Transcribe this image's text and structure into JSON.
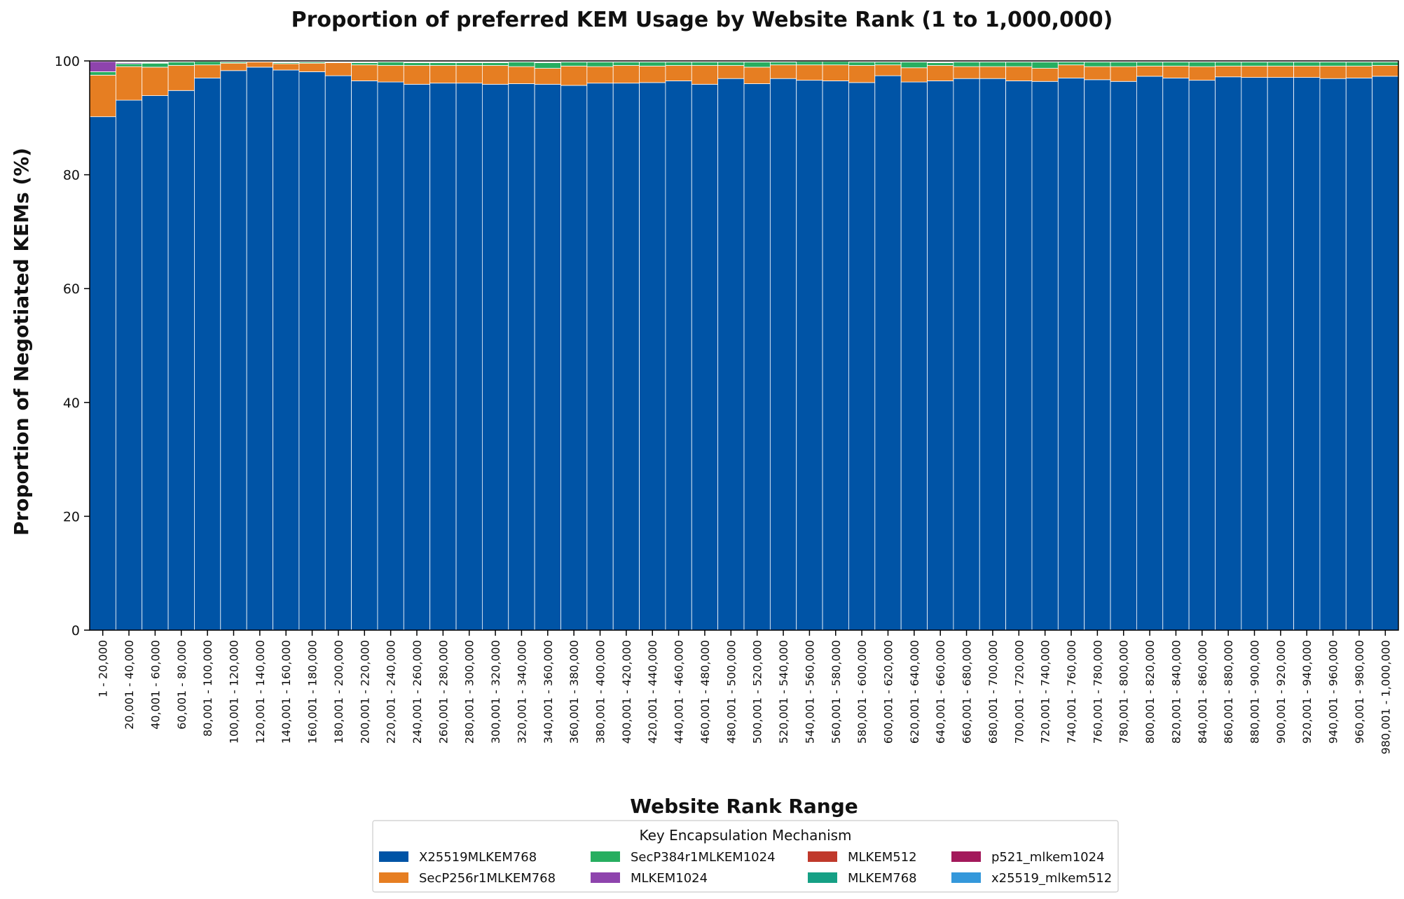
{
  "chart_data": {
    "type": "bar",
    "stacked": true,
    "title": "Proportion of preferred KEM Usage by Website Rank (1 to 1,000,000)",
    "xlabel": "Website Rank Range",
    "ylabel": "Proportion of Negotiated KEMs (%)",
    "ylim": [
      0,
      100
    ],
    "yticks": [
      0,
      20,
      40,
      60,
      80,
      100
    ],
    "grid": false,
    "legend": {
      "title": "Key Encapsulation Mechanism",
      "placement": "bottom-center",
      "columns": 4
    },
    "categories": [
      "1 - 20,000",
      "20,001 - 40,000",
      "40,001 - 60,000",
      "60,001 - 80,000",
      "80,001 - 100,000",
      "100,001 - 120,000",
      "120,001 - 140,000",
      "140,001 - 160,000",
      "160,001 - 180,000",
      "180,001 - 200,000",
      "200,001 - 220,000",
      "220,001 - 240,000",
      "240,001 - 260,000",
      "260,001 - 280,000",
      "280,001 - 300,000",
      "300,001 - 320,000",
      "320,001 - 340,000",
      "340,001 - 360,000",
      "360,001 - 380,000",
      "380,001 - 400,000",
      "400,001 - 420,000",
      "420,001 - 440,000",
      "440,001 - 460,000",
      "460,001 - 480,000",
      "480,001 - 500,000",
      "500,001 - 520,000",
      "520,001 - 540,000",
      "540,001 - 560,000",
      "560,001 - 580,000",
      "580,001 - 600,000",
      "600,001 - 620,000",
      "620,001 - 640,000",
      "640,001 - 660,000",
      "660,001 - 680,000",
      "680,001 - 700,000",
      "700,001 - 720,000",
      "720,001 - 740,000",
      "740,001 - 760,000",
      "760,001 - 780,000",
      "780,001 - 800,000",
      "800,001 - 820,000",
      "820,001 - 840,000",
      "840,001 - 860,000",
      "860,001 - 880,000",
      "880,001 - 900,000",
      "900,001 - 920,000",
      "920,001 - 940,000",
      "940,001 - 960,000",
      "960,001 - 980,000",
      "980,001 - 1,000,000"
    ],
    "series": [
      {
        "name": "X25519MLKEM768",
        "color": "#0054a6",
        "values": [
          90.2,
          93.1,
          93.9,
          94.8,
          97.0,
          98.3,
          98.9,
          98.4,
          98.1,
          97.4,
          96.5,
          96.3,
          95.9,
          96.1,
          96.1,
          95.9,
          96.0,
          95.9,
          95.7,
          96.1,
          96.1,
          96.2,
          96.5,
          95.9,
          96.9,
          96.0,
          96.9,
          96.6,
          96.5,
          96.2,
          97.4,
          96.3,
          96.5,
          96.9,
          96.9,
          96.5,
          96.4,
          97.0,
          96.7,
          96.4,
          97.3,
          97.0,
          96.6,
          97.2,
          97.1,
          97.1,
          97.1,
          96.9,
          97.0,
          97.3
        ]
      },
      {
        "name": "SecP256r1MLKEM768",
        "color": "#e67e22",
        "values": [
          7.3,
          5.9,
          5.0,
          4.4,
          2.3,
          1.3,
          0.9,
          1.1,
          1.5,
          2.3,
          2.8,
          2.9,
          3.3,
          3.1,
          3.1,
          3.3,
          3.0,
          2.8,
          3.4,
          2.9,
          3.1,
          2.9,
          2.7,
          3.3,
          2.3,
          2.9,
          2.4,
          2.7,
          2.8,
          3.0,
          1.9,
          2.5,
          2.7,
          2.1,
          2.1,
          2.5,
          2.3,
          2.3,
          2.3,
          2.6,
          1.8,
          2.1,
          2.4,
          1.9,
          2.0,
          2.0,
          2.0,
          2.2,
          2.1,
          1.9
        ]
      },
      {
        "name": "SecP384r1MLKEM1024",
        "color": "#27ae60",
        "values": [
          0.6,
          0.5,
          0.7,
          0.6,
          0.6,
          0.2,
          0.1,
          0.2,
          0.2,
          0.1,
          0.4,
          0.6,
          0.5,
          0.5,
          0.5,
          0.5,
          0.8,
          1.0,
          0.7,
          0.8,
          0.6,
          0.7,
          0.6,
          0.6,
          0.6,
          0.9,
          0.5,
          0.6,
          0.6,
          0.6,
          0.5,
          1.0,
          0.5,
          0.8,
          0.8,
          0.8,
          1.1,
          0.5,
          0.8,
          0.8,
          0.7,
          0.7,
          0.8,
          0.7,
          0.7,
          0.7,
          0.7,
          0.7,
          0.7,
          0.6
        ]
      },
      {
        "name": "MLKEM1024",
        "color": "#8e44ad",
        "values": [
          1.8,
          0.2,
          0.1,
          0.0,
          0.0,
          0.0,
          0.0,
          0.0,
          0.0,
          0.0,
          0.0,
          0.0,
          0.0,
          0.0,
          0.0,
          0.0,
          0.0,
          0.0,
          0.0,
          0.0,
          0.0,
          0.0,
          0.0,
          0.0,
          0.0,
          0.0,
          0.0,
          0.0,
          0.0,
          0.0,
          0.0,
          0.0,
          0.0,
          0.0,
          0.0,
          0.0,
          0.0,
          0.0,
          0.0,
          0.0,
          0.0,
          0.0,
          0.0,
          0.0,
          0.0,
          0.0,
          0.0,
          0.0,
          0.0,
          0.0
        ]
      },
      {
        "name": "MLKEM512",
        "color": "#c0392b",
        "values": [
          0.0,
          0.1,
          0.1,
          0.1,
          0.0,
          0.1,
          0.0,
          0.1,
          0.1,
          0.1,
          0.1,
          0.1,
          0.1,
          0.1,
          0.1,
          0.1,
          0.1,
          0.1,
          0.1,
          0.1,
          0.1,
          0.1,
          0.1,
          0.1,
          0.1,
          0.1,
          0.1,
          0.1,
          0.1,
          0.1,
          0.1,
          0.1,
          0.1,
          0.1,
          0.1,
          0.1,
          0.1,
          0.1,
          0.1,
          0.1,
          0.1,
          0.1,
          0.1,
          0.1,
          0.1,
          0.1,
          0.1,
          0.1,
          0.1,
          0.1
        ]
      },
      {
        "name": "MLKEM768",
        "color": "#16a085",
        "values": [
          0.1,
          0.1,
          0.1,
          0.1,
          0.1,
          0.1,
          0.1,
          0.1,
          0.1,
          0.1,
          0.1,
          0.1,
          0.1,
          0.1,
          0.1,
          0.1,
          0.1,
          0.1,
          0.1,
          0.1,
          0.1,
          0.1,
          0.1,
          0.1,
          0.1,
          0.1,
          0.1,
          0.1,
          0.1,
          0.1,
          0.1,
          0.1,
          0.1,
          0.1,
          0.1,
          0.1,
          0.1,
          0.1,
          0.1,
          0.1,
          0.1,
          0.1,
          0.1,
          0.1,
          0.1,
          0.1,
          0.1,
          0.1,
          0.1,
          0.1
        ]
      },
      {
        "name": "p521_mlkem1024",
        "color": "#a3195b",
        "values": [
          0.0,
          0.1,
          0.1,
          0.0,
          0.0,
          0.0,
          0.0,
          0.1,
          0.0,
          0.0,
          0.1,
          0.0,
          0.1,
          0.1,
          0.1,
          0.1,
          0.0,
          0.1,
          0.1,
          0.0,
          0.0,
          0.0,
          0.0,
          0.0,
          0.0,
          0.0,
          0.0,
          0.0,
          0.0,
          0.0,
          0.0,
          0.0,
          0.1,
          0.0,
          0.0,
          0.0,
          0.0,
          0.0,
          0.0,
          0.0,
          0.0,
          0.0,
          0.0,
          0.0,
          0.0,
          0.0,
          0.0,
          0.0,
          0.0,
          0.0
        ]
      },
      {
        "name": "x25519_mlkem512",
        "color": "#3498db",
        "values": [
          0.0,
          0.0,
          0.0,
          0.0,
          0.0,
          0.0,
          0.0,
          0.0,
          0.0,
          0.0,
          0.0,
          0.0,
          0.0,
          0.0,
          0.0,
          0.0,
          0.0,
          0.0,
          0.0,
          0.0,
          0.0,
          0.0,
          0.0,
          0.0,
          0.0,
          0.0,
          0.0,
          0.0,
          0.0,
          0.0,
          0.0,
          0.0,
          0.0,
          0.0,
          0.0,
          0.0,
          0.0,
          0.0,
          0.0,
          0.0,
          0.0,
          0.0,
          0.0,
          0.0,
          0.0,
          0.0,
          0.0,
          0.0,
          0.0,
          0.0
        ]
      }
    ]
  }
}
